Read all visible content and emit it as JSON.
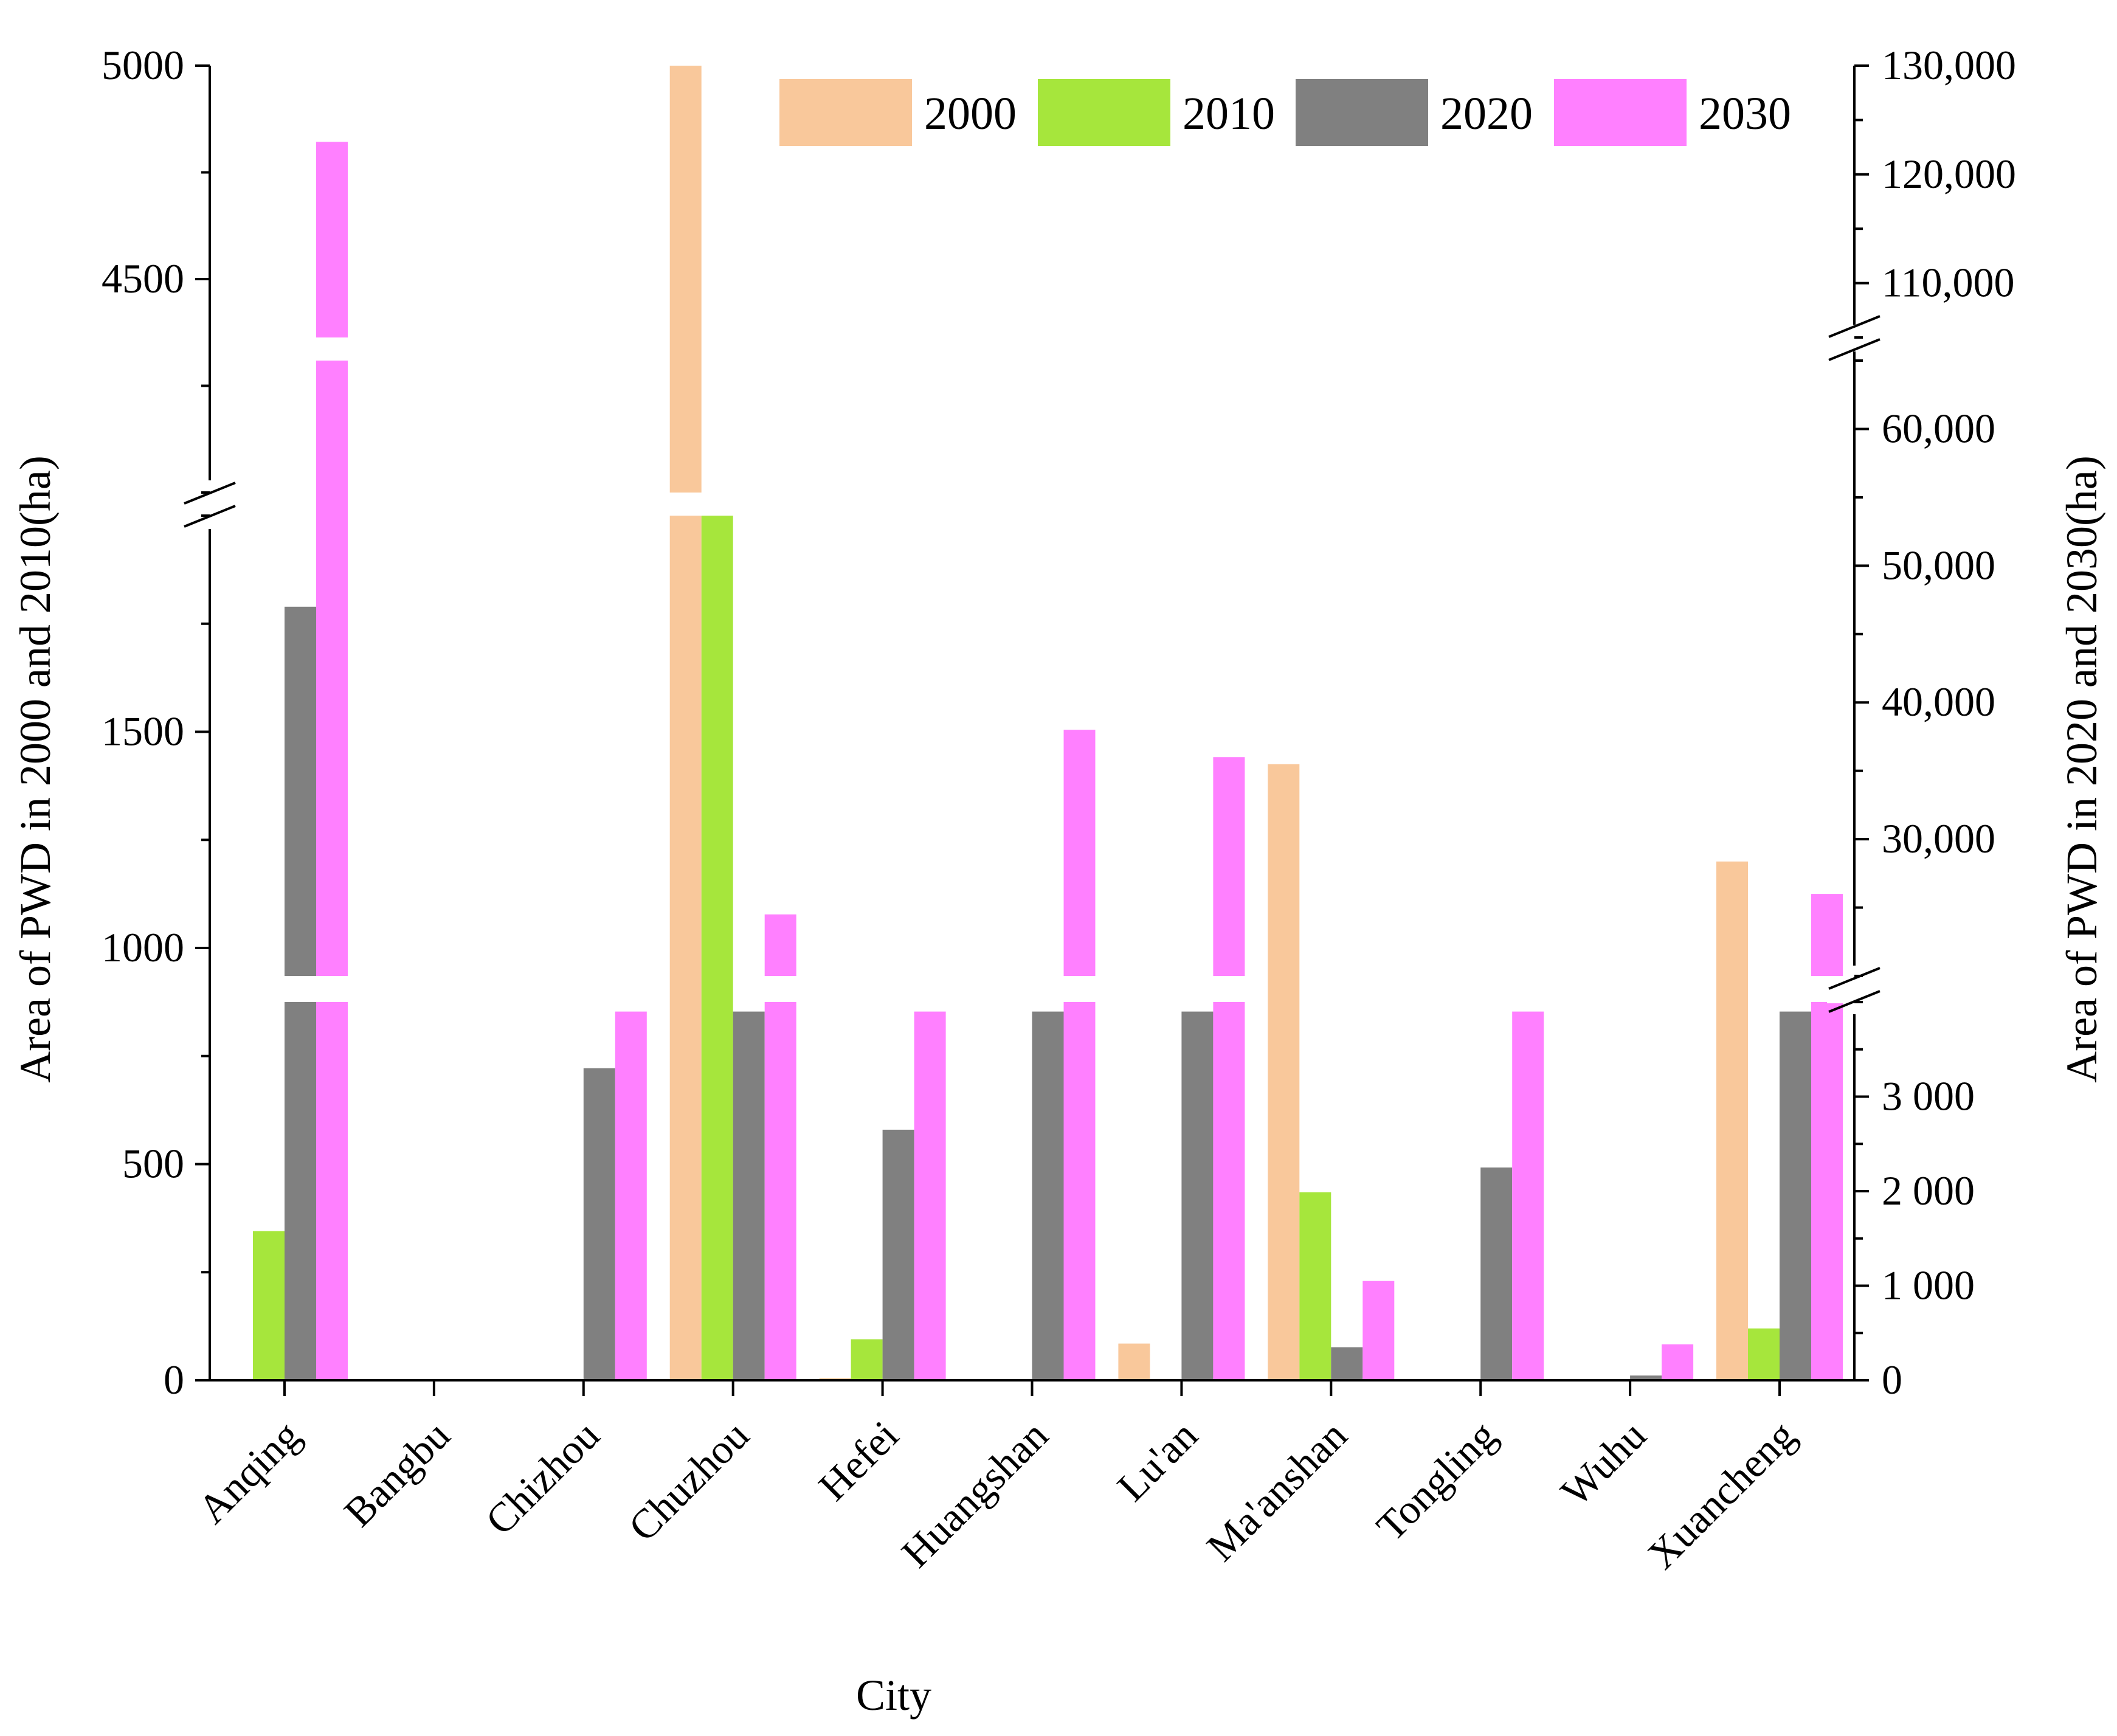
{
  "chart_data": {
    "type": "bar",
    "title": "",
    "xlabel": "City",
    "ylabel_left": "Area of PWD in 2000 and 2010(ha)",
    "ylabel_right": "Area of PWD in 2020 and 2030(ha)",
    "categories": [
      "Anqing",
      "Bangbu",
      "Chizhou",
      "Chuzhou",
      "Hefei",
      "Huangshan",
      "Lu'an",
      "Ma'anshan",
      "Tongling",
      "Wuhu",
      "Xuancheng"
    ],
    "series": [
      {
        "name": "2000",
        "axis": "left",
        "color": "#f9c89b",
        "values": [
          0,
          0,
          0,
          5000,
          5,
          0,
          85,
          1425,
          0,
          0,
          1200
        ]
      },
      {
        "name": "2010",
        "axis": "left",
        "color": "#a6e63c",
        "values": [
          345,
          0,
          0,
          2000,
          95,
          0,
          0,
          435,
          0,
          0,
          120
        ]
      },
      {
        "name": "2020",
        "axis": "right",
        "color": "#808080",
        "values": [
          47000,
          0,
          3300,
          3900,
          2650,
          3900,
          3900,
          350,
          2250,
          50,
          3900
        ]
      },
      {
        "name": "2030",
        "axis": "right",
        "color": "#ff80ff",
        "values": [
          123000,
          0,
          3900,
          24500,
          3900,
          38000,
          36000,
          1050,
          3900,
          380,
          26000
        ]
      }
    ],
    "left_axis": {
      "segments": [
        {
          "range": [
            0,
            2000
          ],
          "ticks": [
            "0",
            "500",
            "1000",
            "1500"
          ]
        },
        {
          "range": [
            4000,
            5000
          ],
          "ticks": [
            "4500",
            "5000"
          ]
        }
      ]
    },
    "right_axis": {
      "segments": [
        {
          "range": [
            0,
            4000
          ],
          "ticks": [
            "0",
            "1 000",
            "2 000",
            "3 000"
          ]
        },
        {
          "range": [
            20000,
            65000
          ],
          "ticks": [
            "30,000",
            "40,000",
            "50,000",
            "60,000"
          ]
        },
        {
          "range": [
            105000,
            130000
          ],
          "ticks": [
            "110,000",
            "120,000",
            "130,000"
          ]
        }
      ]
    },
    "legend_position": "top-right"
  }
}
